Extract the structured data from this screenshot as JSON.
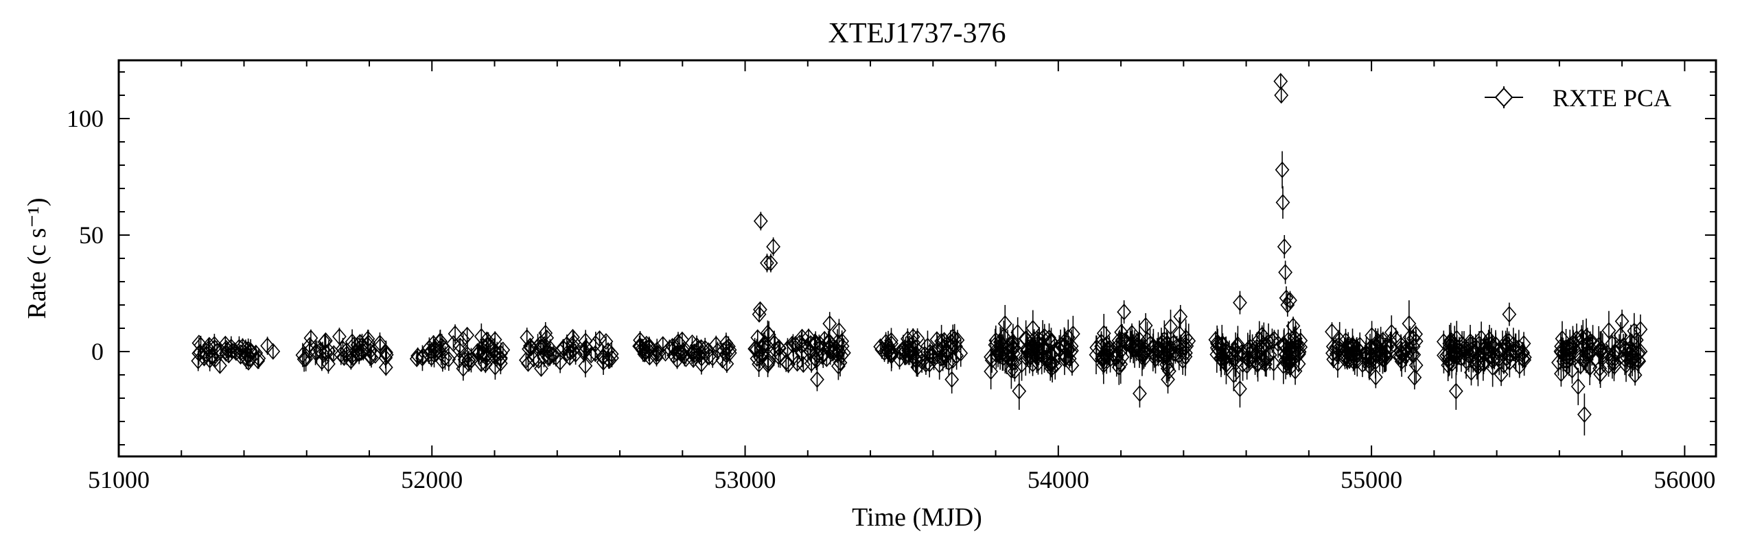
{
  "chart_data": {
    "type": "scatter",
    "title": "XTEJ1737-376",
    "xlabel": "Time (MJD)",
    "ylabel": "Rate (c s⁻¹)",
    "xlim": [
      51000,
      56100
    ],
    "ylim": [
      -45,
      125
    ],
    "x_ticks": [
      51000,
      52000,
      53000,
      54000,
      55000,
      56000
    ],
    "y_ticks": [
      0,
      50,
      100
    ],
    "x_minor_step": 200,
    "y_minor_step": 10,
    "grid": false,
    "legend_position": "top-right",
    "series": [
      {
        "name": "RXTE PCA",
        "marker": "diamond-open",
        "color": "#000000",
        "segments": [
          {
            "start": 51230,
            "end": 51500,
            "count": 45,
            "spread": 2.5,
            "err": 3.5
          },
          {
            "start": 51580,
            "end": 51860,
            "count": 50,
            "spread": 3.0,
            "err": 4.0
          },
          {
            "start": 51950,
            "end": 52230,
            "count": 60,
            "spread": 3.0,
            "err": 4.0
          },
          {
            "start": 52300,
            "end": 52580,
            "count": 55,
            "spread": 3.0,
            "err": 4.0
          },
          {
            "start": 52660,
            "end": 52960,
            "count": 60,
            "spread": 2.5,
            "err": 3.5
          },
          {
            "start": 53020,
            "end": 53320,
            "count": 70,
            "spread": 3.0,
            "err": 4.5
          },
          {
            "start": 53420,
            "end": 53690,
            "count": 70,
            "spread": 3.5,
            "err": 5.0
          },
          {
            "start": 53780,
            "end": 54050,
            "count": 90,
            "spread": 4.0,
            "err": 6.0
          },
          {
            "start": 54120,
            "end": 54420,
            "count": 95,
            "spread": 4.0,
            "err": 6.0
          },
          {
            "start": 54500,
            "end": 54780,
            "count": 90,
            "spread": 4.0,
            "err": 6.0
          },
          {
            "start": 54870,
            "end": 55150,
            "count": 90,
            "spread": 4.0,
            "err": 5.5
          },
          {
            "start": 55230,
            "end": 55500,
            "count": 85,
            "spread": 4.0,
            "err": 6.0
          },
          {
            "start": 55590,
            "end": 55860,
            "count": 85,
            "spread": 4.0,
            "err": 6.0
          }
        ],
        "outliers": [
          {
            "x": 53050,
            "y": 56,
            "err": 4
          },
          {
            "x": 53070,
            "y": 38,
            "err": 4
          },
          {
            "x": 53082,
            "y": 38,
            "err": 4
          },
          {
            "x": 53090,
            "y": 45,
            "err": 4
          },
          {
            "x": 53048,
            "y": 18,
            "err": 3
          },
          {
            "x": 53045,
            "y": 16,
            "err": 3
          },
          {
            "x": 53040,
            "y": 6,
            "err": 3
          },
          {
            "x": 53038,
            "y": -3,
            "err": 3
          },
          {
            "x": 53230,
            "y": -12,
            "err": 5
          },
          {
            "x": 53270,
            "y": 12,
            "err": 5
          },
          {
            "x": 53300,
            "y": 9,
            "err": 5
          },
          {
            "x": 53660,
            "y": -12,
            "err": 6
          },
          {
            "x": 53830,
            "y": 12,
            "err": 8
          },
          {
            "x": 53850,
            "y": -8,
            "err": 8
          },
          {
            "x": 53875,
            "y": -17,
            "err": 8
          },
          {
            "x": 53990,
            "y": -6,
            "err": 6
          },
          {
            "x": 54210,
            "y": 17,
            "err": 5
          },
          {
            "x": 54260,
            "y": -18,
            "err": 6
          },
          {
            "x": 54390,
            "y": 15,
            "err": 5
          },
          {
            "x": 54350,
            "y": -12,
            "err": 6
          },
          {
            "x": 54580,
            "y": 21,
            "err": 5
          },
          {
            "x": 54560,
            "y": -10,
            "err": 7
          },
          {
            "x": 54580,
            "y": -16,
            "err": 8
          },
          {
            "x": 54710,
            "y": 116,
            "err": 3
          },
          {
            "x": 54712,
            "y": 110,
            "err": 3
          },
          {
            "x": 54715,
            "y": 78,
            "err": 8
          },
          {
            "x": 54717,
            "y": 64,
            "err": 7
          },
          {
            "x": 54722,
            "y": 45,
            "err": 5
          },
          {
            "x": 54725,
            "y": 34,
            "err": 5
          },
          {
            "x": 54728,
            "y": 23,
            "err": 5
          },
          {
            "x": 54732,
            "y": 20,
            "err": 5
          },
          {
            "x": 54740,
            "y": 22,
            "err": 4
          },
          {
            "x": 54750,
            "y": 11,
            "err": 4
          },
          {
            "x": 55120,
            "y": 12,
            "err": 10
          },
          {
            "x": 55270,
            "y": -17,
            "err": 8
          },
          {
            "x": 55440,
            "y": 16,
            "err": 5
          },
          {
            "x": 55680,
            "y": -27,
            "err": 9
          },
          {
            "x": 55660,
            "y": -15,
            "err": 8
          },
          {
            "x": 55800,
            "y": 13,
            "err": 5
          }
        ]
      }
    ]
  }
}
